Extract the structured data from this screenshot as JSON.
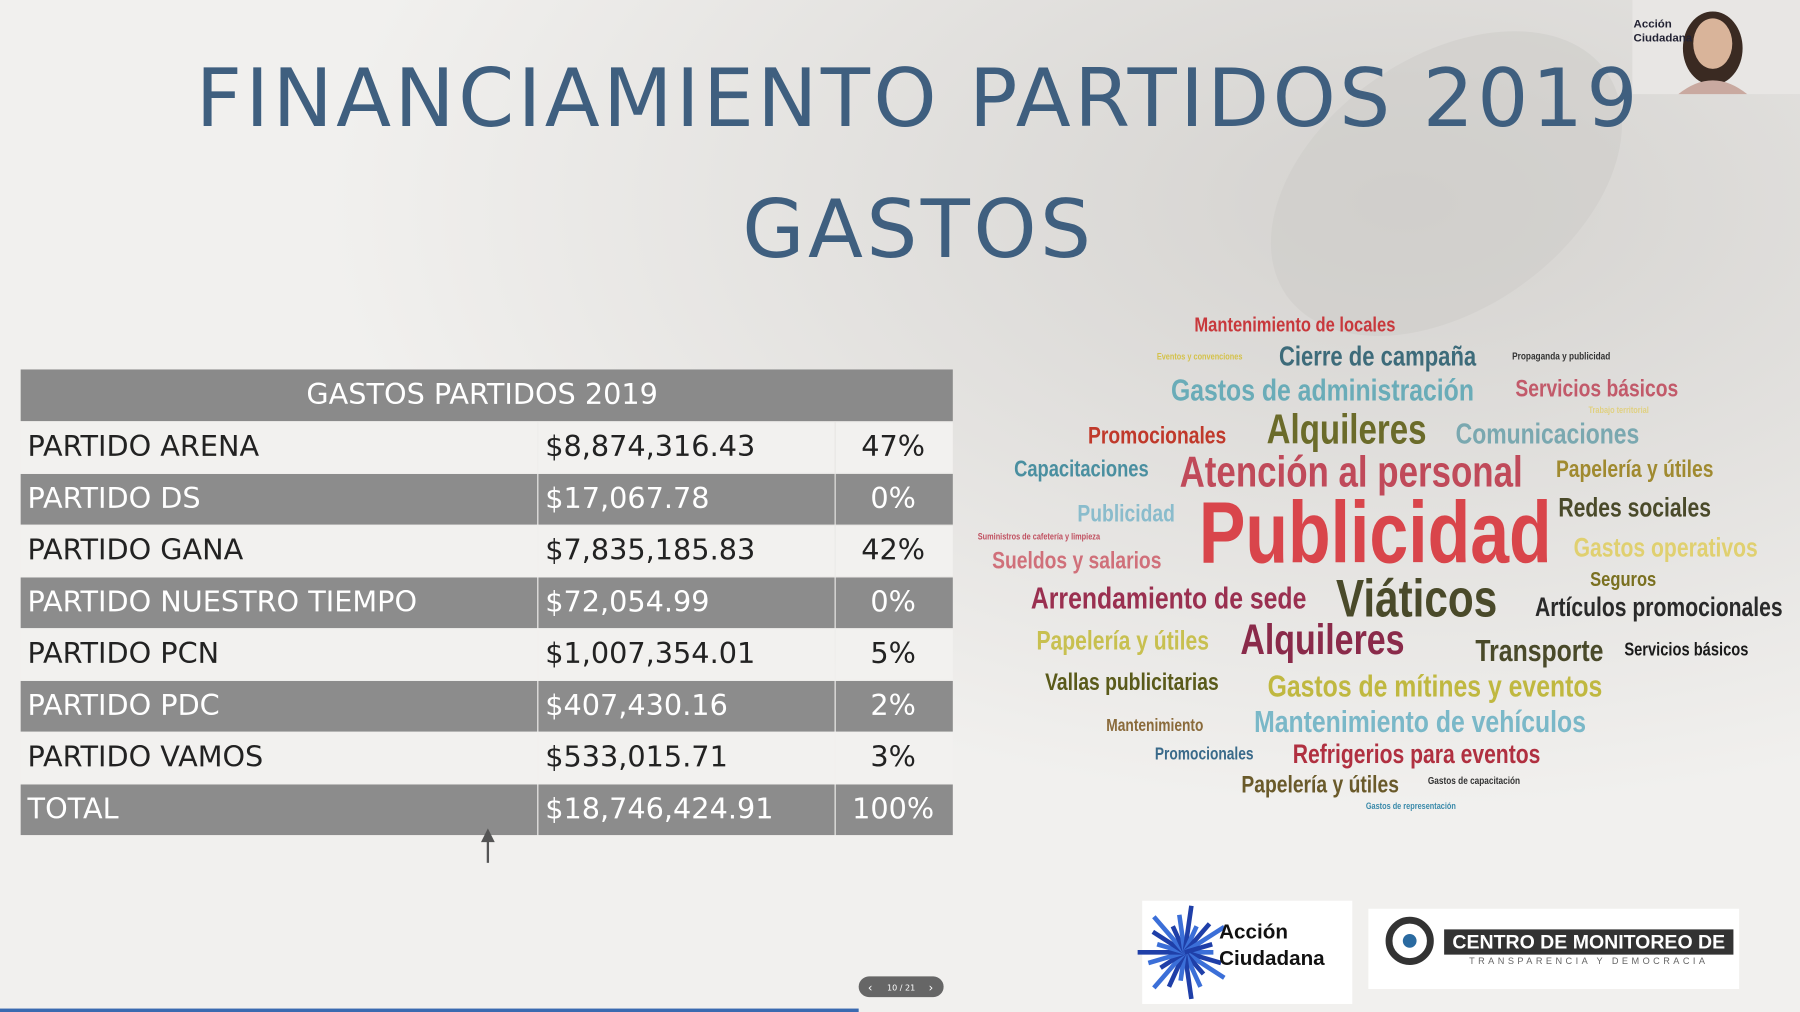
{
  "slide": {
    "title_lines": [
      "FINANCIAMIENTO PARTIDOS 2019",
      "GASTOS"
    ],
    "table": {
      "title": "GASTOS PARTIDOS 2019",
      "rows": [
        [
          "PARTIDO ARENA",
          "$8,874,316.43",
          "47%"
        ],
        [
          "PARTIDO DS",
          "$17,067.78",
          "0%"
        ],
        [
          "PARTIDO GANA",
          "$7,835,185.83",
          "42%"
        ],
        [
          "PARTIDO NUESTRO TIEMPO",
          "$72,054.99",
          "0%"
        ],
        [
          "PARTIDO PCN",
          "$1,007,354.01",
          "5%"
        ],
        [
          "PARTIDO PDC",
          "$407,430.16",
          "2%"
        ],
        [
          "PARTIDO VAMOS",
          "$533,015.71",
          "3%"
        ],
        [
          "TOTAL",
          "$18,746,424.91",
          "100%"
        ]
      ]
    },
    "word_cloud": [
      "Mantenimiento de locales",
      "Eventos y convenciones",
      "Cierre de campaña",
      "Propaganda y publicidad",
      "Gastos de administración",
      "Servicios básicos",
      "Trabajo territorial",
      "Promocionales",
      "Alquileres",
      "Comunicaciones",
      "Capacitaciones",
      "Atención al personal",
      "Papelería y útiles",
      "Publicidad",
      "Redes sociales",
      "Suministros de cafetería y limpieza",
      "Publicidad",
      "Gastos operativos",
      "Sueldos y salarios",
      "Seguros",
      "Arrendamiento de sede",
      "Viáticos",
      "Artículos promocionales",
      "Papelería y útiles",
      "Alquileres",
      "Transporte",
      "Servicios básicos",
      "Vallas publicitarias",
      "Gastos de mítines y eventos",
      "Mantenimiento",
      "Mantenimiento de vehículos",
      "Promocionales",
      "Refrigerios para eventos",
      "Papelería y útiles",
      "Gastos de capacitación",
      "Gastos de representación"
    ],
    "logos": {
      "accion": [
        "Acción",
        "Ciudadana"
      ],
      "centro": [
        "CENTRO DE MONITOREO DE",
        "TRANSPARENCIA Y DEMOCRACIA"
      ]
    },
    "webcam_label": [
      "Acción",
      "Ciudadana"
    ],
    "nav": "10 / 21"
  }
}
